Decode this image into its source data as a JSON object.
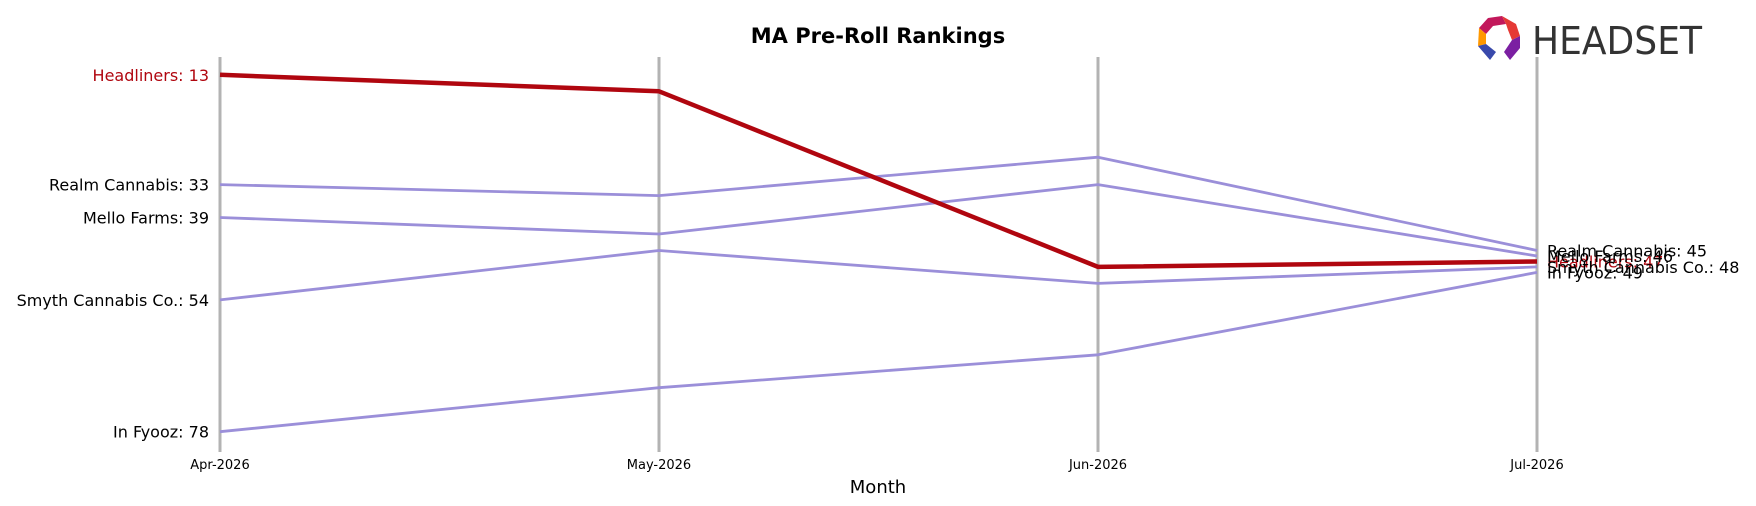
{
  "chart_data": {
    "type": "line",
    "title": "MA Pre-Roll Rankings",
    "xlabel": "Month",
    "ylabel": "",
    "x": [
      "Apr-2026",
      "May-2026",
      "Jun-2026",
      "Jul-2026"
    ],
    "y_inverted": true,
    "ylim": [
      10,
      80
    ],
    "grid": "vertical lines at each month",
    "series": [
      {
        "name": "Headliners",
        "values": [
          13,
          16,
          48,
          47
        ],
        "color": "#b0060f",
        "highlight": true,
        "start_label": "Headliners: 13",
        "end_label": "Headliners: 47"
      },
      {
        "name": "Realm Cannabis",
        "values": [
          33,
          35,
          28,
          45
        ],
        "color": "#9b8fd9",
        "start_label": "Realm Cannabis: 33",
        "end_label": "Realm Cannabis: 45"
      },
      {
        "name": "Mello Farms",
        "values": [
          39,
          42,
          33,
          46
        ],
        "color": "#9b8fd9",
        "start_label": "Mello Farms: 39",
        "end_label": "Mello Farms: 46"
      },
      {
        "name": "Smyth Cannabis Co.",
        "values": [
          54,
          45,
          51,
          48
        ],
        "color": "#9b8fd9",
        "start_label": "Smyth Cannabis Co.: 54",
        "end_label": "Smyth Cannabis Co.: 48"
      },
      {
        "name": "In Fyooz",
        "values": [
          78,
          70,
          64,
          49
        ],
        "color": "#9b8fd9",
        "start_label": "In Fyooz: 78",
        "end_label": "In Fyooz: 49"
      }
    ]
  },
  "logo": {
    "text": "HEADSET",
    "colors": [
      "#c2185b",
      "#e53935",
      "#ff9800",
      "#3949ab",
      "#7b1fa2"
    ]
  }
}
